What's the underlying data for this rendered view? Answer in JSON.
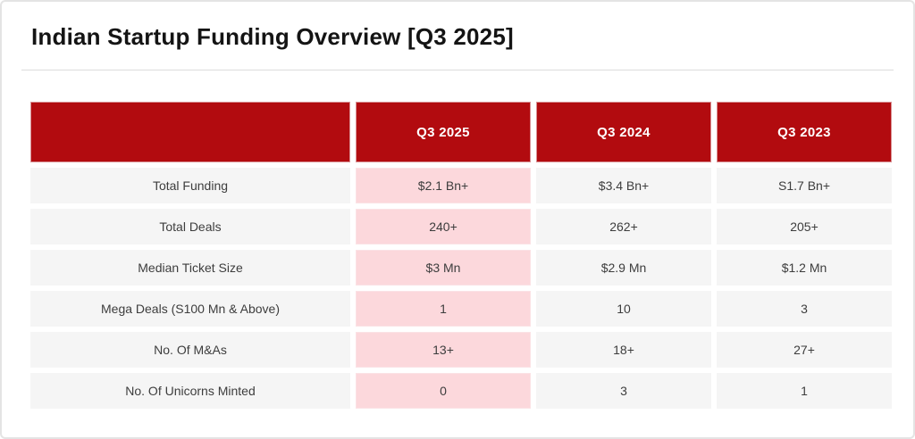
{
  "header": {
    "title": "Indian Startup Funding Overview [Q3 2025]"
  },
  "chart_data": {
    "type": "table",
    "title": "Indian Startup Funding Overview [Q3 2025]",
    "column_headers": [
      "Q3 2025",
      "Q3 2024",
      "Q3 2023"
    ],
    "highlight_column": "Q3 2025",
    "rows": [
      {
        "label": "Total Funding",
        "values": [
          "$2.1 Bn+",
          "$3.4 Bn+",
          "S1.7 Bn+"
        ]
      },
      {
        "label": "Total Deals",
        "values": [
          "240+",
          "262+",
          "205+"
        ]
      },
      {
        "label": "Median Ticket Size",
        "values": [
          "$3 Mn",
          "$2.9 Mn",
          "$1.2 Mn"
        ]
      },
      {
        "label": "Mega Deals (S100 Mn & Above)",
        "values": [
          "1",
          "10",
          "3"
        ]
      },
      {
        "label": "No. Of M&As",
        "values": [
          "13+",
          "18+",
          "27+"
        ]
      },
      {
        "label": "No. Of Unicorns Minted",
        "values": [
          "0",
          "3",
          "1"
        ]
      }
    ]
  },
  "colors": {
    "header_red": "#b20b0f",
    "highlight_pink": "#fcd8dc",
    "row_gray": "#f5f5f5",
    "border_gray": "#dcdcdc",
    "title_text": "#141414",
    "cell_text": "#3d3d3d"
  }
}
